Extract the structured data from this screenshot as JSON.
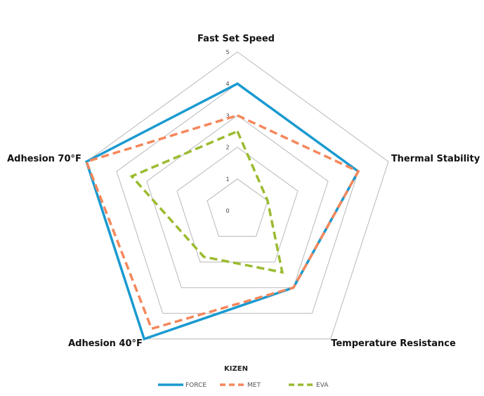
{
  "chart_data": {
    "type": "radar",
    "categories": [
      "Fast Set Speed",
      "Thermal Stability",
      "Temperature Resistance",
      "Adhesion 40°F",
      "Adhesion 70°F"
    ],
    "range": [
      0,
      5
    ],
    "ticks": [
      "0",
      "1",
      "2",
      "3",
      "4",
      "5"
    ],
    "legend_title": "KIZEN",
    "legend_position": "bottom",
    "gridlines": true,
    "series": [
      {
        "name": "FORCE",
        "values": [
          4,
          4,
          3,
          5,
          5
        ],
        "color": "#1a9ad0",
        "style": "solid"
      },
      {
        "name": "MET",
        "values": [
          3,
          4,
          3,
          4.6,
          5
        ],
        "color": "#f4875b",
        "style": "dashed"
      },
      {
        "name": "EVA",
        "values": [
          2.5,
          1,
          2.4,
          1.8,
          3.5
        ],
        "color": "#9bbb2f",
        "style": "dashed"
      }
    ]
  }
}
